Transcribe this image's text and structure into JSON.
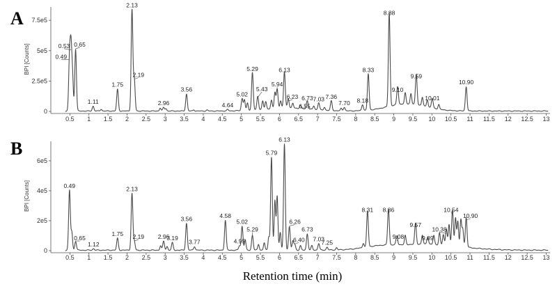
{
  "chart_data": [
    {
      "type": "line",
      "panel": "A",
      "ylabel": "BPI [Counts]",
      "xlim": [
        0,
        13.1
      ],
      "ylim": [
        0,
        860000
      ],
      "x_ticks": [
        0.5,
        1,
        1.5,
        2,
        2.5,
        3,
        3.5,
        4,
        4.5,
        5,
        5.5,
        6,
        6.5,
        7,
        7.5,
        8,
        8.5,
        9,
        9.5,
        10,
        10.5,
        11,
        11.5,
        12,
        12.5,
        13
      ],
      "x_tick_labels": [
        "0.5",
        "1",
        "1.5",
        "2",
        "2.5",
        "3",
        "3.5",
        "4",
        "4.5",
        "5",
        "5.5",
        "6",
        "6.5",
        "7",
        "7.5",
        "8",
        "8.5",
        "9",
        "9.5",
        "10",
        "10.5",
        "11",
        "11.5",
        "12",
        "12.5",
        "13"
      ],
      "y_ticks": [
        0,
        250000,
        500000,
        750000
      ],
      "y_tick_labels": [
        "0",
        "2.5e5",
        "5e5",
        "7.5e5"
      ],
      "peaks": [
        {
          "rt": 0.49,
          "label": "0.49",
          "y": 420000
        },
        {
          "rt": 0.53,
          "label": "0.53",
          "y": 500000
        },
        {
          "rt": 0.65,
          "label": "0.65",
          "y": 510000
        },
        {
          "rt": 1.11,
          "label": "1.11",
          "y": 40000
        },
        {
          "rt": 1.75,
          "label": "1.75",
          "y": 180000
        },
        {
          "rt": 2.13,
          "label": "2.13",
          "y": 835000
        },
        {
          "rt": 2.19,
          "label": "2.19",
          "y": 260000
        },
        {
          "rt": 2.96,
          "label": "2.96",
          "y": 30000
        },
        {
          "rt": 3.56,
          "label": "3.56",
          "y": 140000
        },
        {
          "rt": 4.64,
          "label": "4.64",
          "y": 12000
        },
        {
          "rt": 5.02,
          "label": "5.02",
          "y": 100000
        },
        {
          "rt": 5.29,
          "label": "5.29",
          "y": 310000
        },
        {
          "rt": 5.43,
          "label": "5.43",
          "y": 110000
        },
        {
          "rt": 5.94,
          "label": "5.94",
          "y": 160000
        },
        {
          "rt": 6.13,
          "label": "6.13",
          "y": 300000
        },
        {
          "rt": 6.23,
          "label": "6.23",
          "y": 80000
        },
        {
          "rt": 6.55,
          "label": "6.55",
          "y": 25000
        },
        {
          "rt": 6.73,
          "label": "6.73",
          "y": 70000
        },
        {
          "rt": 7.03,
          "label": "7.03",
          "y": 60000
        },
        {
          "rt": 7.36,
          "label": "7.36",
          "y": 80000
        },
        {
          "rt": 7.7,
          "label": "7.70",
          "y": 30000
        },
        {
          "rt": 8.18,
          "label": "8.18",
          "y": 50000
        },
        {
          "rt": 8.33,
          "label": "8.33",
          "y": 300000
        },
        {
          "rt": 8.88,
          "label": "8.88",
          "y": 770000
        },
        {
          "rt": 9.1,
          "label": "9.10",
          "y": 150000
        },
        {
          "rt": 9.59,
          "label": "9.59",
          "y": 250000
        },
        {
          "rt": 10.01,
          "label": "10.01",
          "y": 80000
        },
        {
          "rt": 10.9,
          "label": "10.90",
          "y": 200000
        }
      ],
      "extra_peaks": [
        {
          "rt": 0.57,
          "y": 260000
        },
        {
          "rt": 1.32,
          "y": 15000
        },
        {
          "rt": 2.87,
          "y": 25000
        },
        {
          "rt": 3.02,
          "y": 20000
        },
        {
          "rt": 3.75,
          "y": 10000
        },
        {
          "rt": 4.1,
          "y": 8000
        },
        {
          "rt": 5.08,
          "y": 90000
        },
        {
          "rt": 5.16,
          "y": 60000
        },
        {
          "rt": 5.56,
          "y": 70000
        },
        {
          "rt": 5.64,
          "y": 60000
        },
        {
          "rt": 5.79,
          "y": 70000
        },
        {
          "rt": 5.88,
          "y": 130000
        },
        {
          "rt": 6.03,
          "y": 60000
        },
        {
          "rt": 6.35,
          "y": 40000
        },
        {
          "rt": 6.9,
          "y": 30000
        },
        {
          "rt": 7.18,
          "y": 25000
        },
        {
          "rt": 7.62,
          "y": 20000
        },
        {
          "rt": 9.3,
          "y": 90000
        },
        {
          "rt": 9.45,
          "y": 85000
        },
        {
          "rt": 9.75,
          "y": 70000
        },
        {
          "rt": 9.88,
          "y": 60000
        },
        {
          "rt": 10.18,
          "y": 40000
        }
      ],
      "humps": [
        {
          "center": 9.35,
          "width": 0.5,
          "height": 60000
        },
        {
          "center": 6.2,
          "width": 0.6,
          "height": 25000
        }
      ]
    },
    {
      "type": "line",
      "panel": "B",
      "ylabel": "BPI [Counts]",
      "xlim": [
        0,
        13.1
      ],
      "ylim": [
        0,
        730000
      ],
      "x_ticks": [
        0.5,
        1,
        1.5,
        2,
        2.5,
        3,
        3.5,
        4,
        4.5,
        5,
        5.5,
        6,
        6.5,
        7,
        7.5,
        8,
        8.5,
        9,
        9.5,
        10,
        10.5,
        11,
        11.5,
        12,
        12.5,
        13
      ],
      "x_tick_labels": [
        "0.5",
        "1",
        "1.5",
        "2",
        "2.5",
        "3",
        "3.5",
        "4",
        "4.5",
        "5",
        "5.5",
        "6",
        "6.5",
        "7",
        "7.5",
        "8",
        "8.5",
        "9",
        "9.5",
        "10",
        "10.5",
        "11",
        "11.5",
        "12",
        "12.5",
        "13"
      ],
      "y_ticks": [
        0,
        200000,
        400000,
        600000
      ],
      "y_tick_labels": [
        "0",
        "2e5",
        "4e5",
        "6e5"
      ],
      "peaks": [
        {
          "rt": 0.49,
          "label": "0.49",
          "y": 400000
        },
        {
          "rt": 0.65,
          "label": "0.65",
          "y": 60000
        },
        {
          "rt": 1.12,
          "label": "1.12",
          "y": 10000
        },
        {
          "rt": 1.75,
          "label": "1.75",
          "y": 80000
        },
        {
          "rt": 2.13,
          "label": "2.13",
          "y": 380000
        },
        {
          "rt": 2.19,
          "label": "2.19",
          "y": 60000
        },
        {
          "rt": 2.96,
          "label": "2.96",
          "y": 60000
        },
        {
          "rt": 3.19,
          "label": "3.19",
          "y": 50000
        },
        {
          "rt": 3.56,
          "label": "3.56",
          "y": 180000
        },
        {
          "rt": 3.77,
          "label": "3.77",
          "y": 25000
        },
        {
          "rt": 4.58,
          "label": "4.58",
          "y": 200000
        },
        {
          "rt": 4.95,
          "label": "4.95",
          "y": 30000
        },
        {
          "rt": 5.02,
          "label": "5.02",
          "y": 160000
        },
        {
          "rt": 5.29,
          "label": "5.29",
          "y": 100000
        },
        {
          "rt": 5.79,
          "label": "5.79",
          "y": 620000
        },
        {
          "rt": 6.13,
          "label": "6.13",
          "y": 710000
        },
        {
          "rt": 6.26,
          "label": "6.26",
          "y": 160000
        },
        {
          "rt": 6.4,
          "label": "6.40",
          "y": 40000
        },
        {
          "rt": 6.73,
          "label": "6.73",
          "y": 110000
        },
        {
          "rt": 7.03,
          "label": "7.03",
          "y": 45000
        },
        {
          "rt": 7.25,
          "label": "7.25",
          "y": 20000
        },
        {
          "rt": 8.31,
          "label": "8.31",
          "y": 240000
        },
        {
          "rt": 8.86,
          "label": "8.86",
          "y": 240000
        },
        {
          "rt": 9.08,
          "label": "9.08",
          "y": 60000
        },
        {
          "rt": 9.57,
          "label": "9.57",
          "y": 140000
        },
        {
          "rt": 9.89,
          "label": "9.89",
          "y": 50000
        },
        {
          "rt": 10.38,
          "label": "10.38",
          "y": 110000
        },
        {
          "rt": 10.54,
          "label": "10.54",
          "y": 240000
        },
        {
          "rt": 10.9,
          "label": "10.90",
          "y": 200000
        }
      ],
      "extra_peaks": [
        {
          "rt": 0.55,
          "y": 120000
        },
        {
          "rt": 2.88,
          "y": 30000
        },
        {
          "rt": 3.05,
          "y": 25000
        },
        {
          "rt": 5.1,
          "y": 70000
        },
        {
          "rt": 5.45,
          "y": 40000
        },
        {
          "rt": 5.6,
          "y": 50000
        },
        {
          "rt": 5.72,
          "y": 90000
        },
        {
          "rt": 5.88,
          "y": 330000
        },
        {
          "rt": 5.94,
          "y": 360000
        },
        {
          "rt": 6.02,
          "y": 120000
        },
        {
          "rt": 6.35,
          "y": 60000
        },
        {
          "rt": 6.55,
          "y": 30000
        },
        {
          "rt": 6.85,
          "y": 30000
        },
        {
          "rt": 7.5,
          "y": 15000
        },
        {
          "rt": 8.2,
          "y": 30000
        },
        {
          "rt": 9.3,
          "y": 60000
        },
        {
          "rt": 9.75,
          "y": 60000
        },
        {
          "rt": 10.05,
          "y": 60000
        },
        {
          "rt": 10.2,
          "y": 80000
        },
        {
          "rt": 10.3,
          "y": 70000
        },
        {
          "rt": 10.45,
          "y": 140000
        },
        {
          "rt": 10.62,
          "y": 190000
        },
        {
          "rt": 10.68,
          "y": 170000
        },
        {
          "rt": 10.76,
          "y": 180000
        },
        {
          "rt": 10.81,
          "y": 120000
        }
      ],
      "humps": [
        {
          "center": 9.8,
          "width": 0.9,
          "height": 40000
        },
        {
          "center": 8.6,
          "width": 0.4,
          "height": 15000
        }
      ]
    }
  ],
  "labels": {
    "panel_a": "A",
    "panel_b": "B",
    "xlabel": "Retention time (min)"
  }
}
